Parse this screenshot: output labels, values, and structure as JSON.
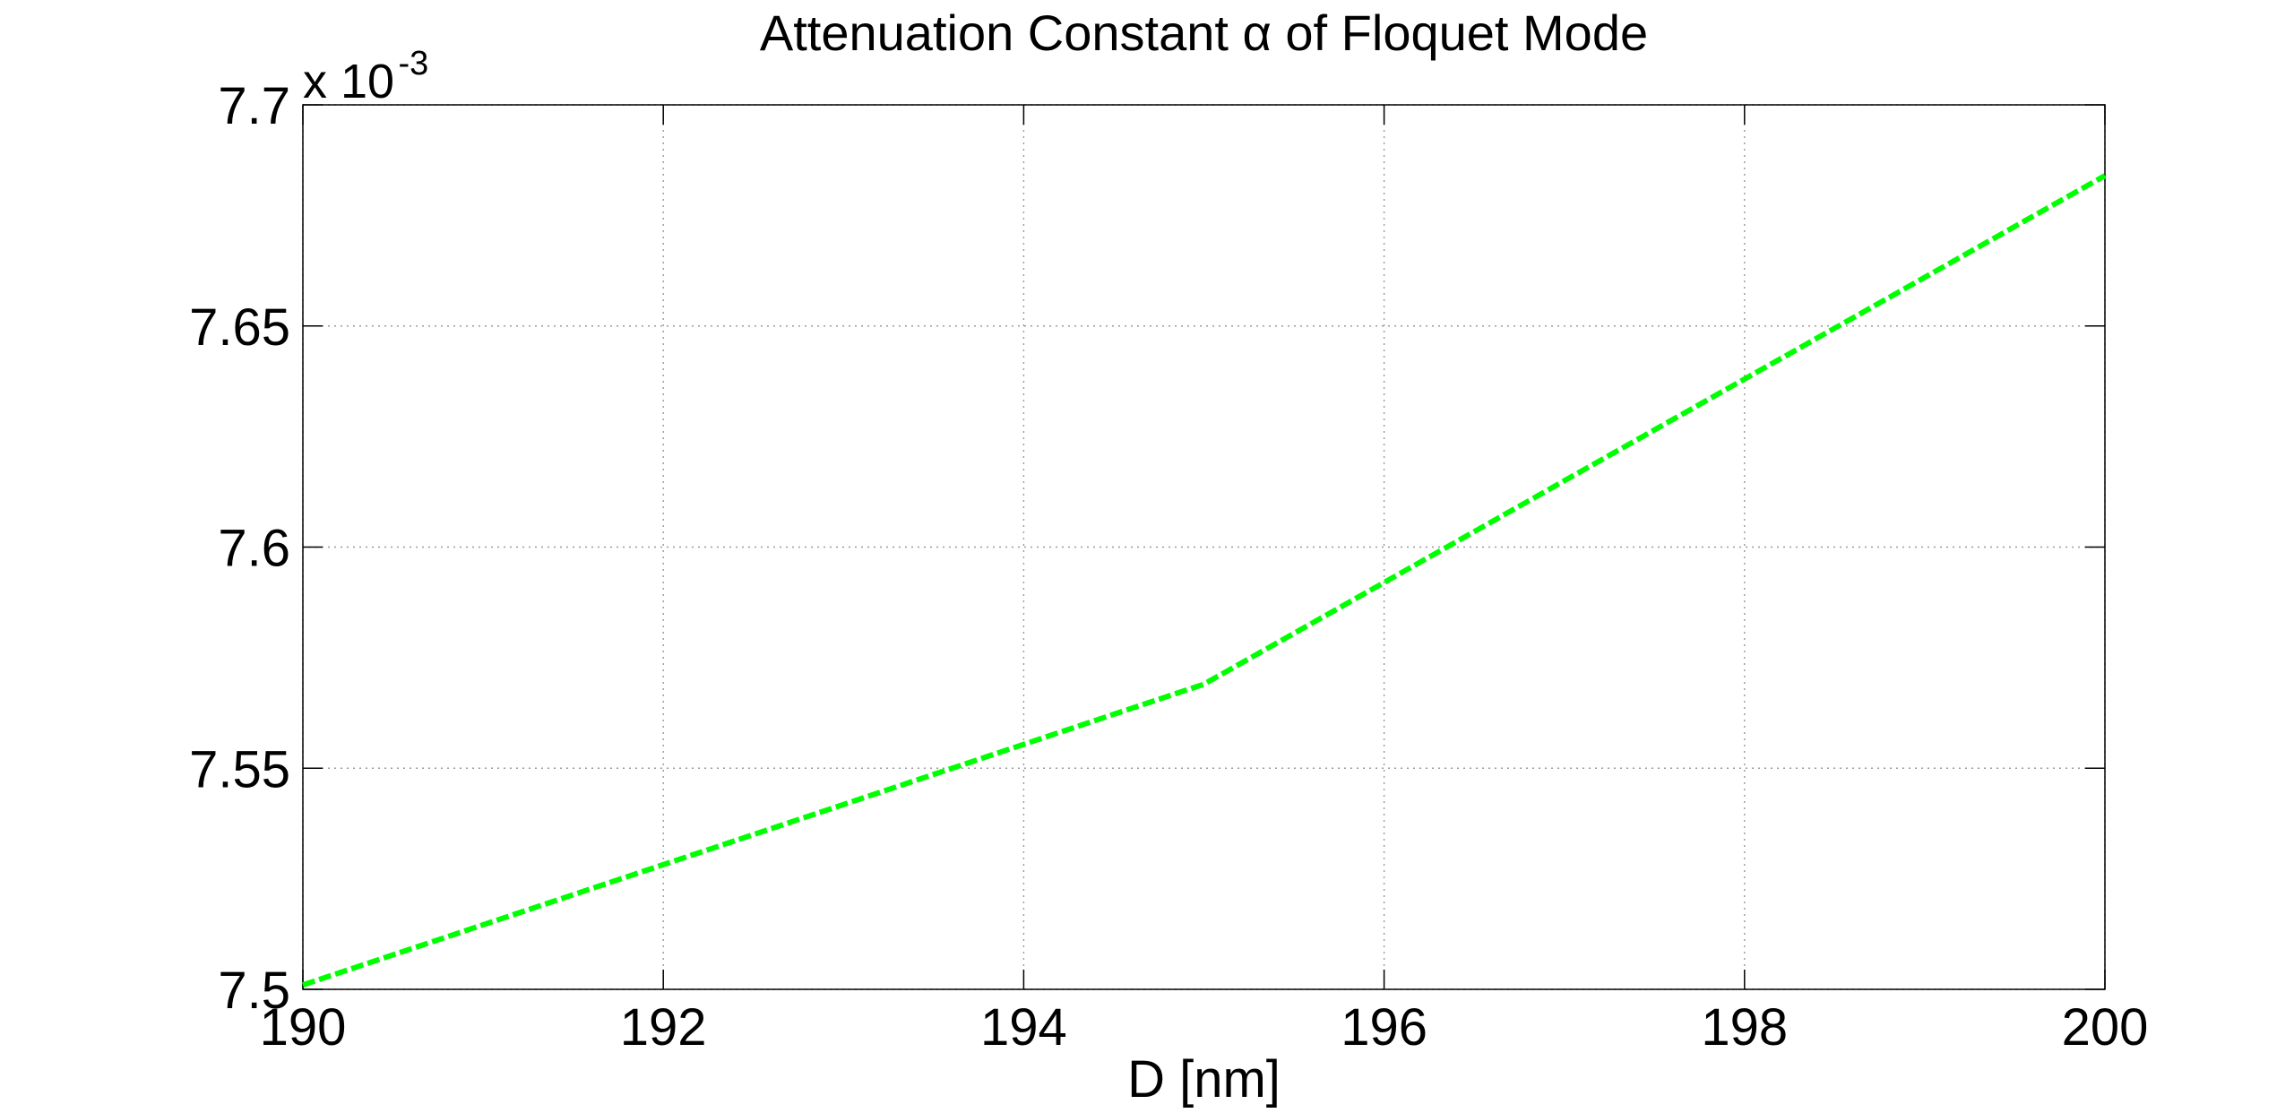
{
  "chart_data": {
    "type": "line",
    "title": "Attenuation Constant α of Floquet Mode",
    "xlabel": "D [nm]",
    "ylabel": "",
    "xlim": [
      190,
      200
    ],
    "ylim": [
      0.0075,
      0.0077
    ],
    "x_ticks": [
      190,
      192,
      194,
      196,
      198,
      200
    ],
    "x_tick_labels": [
      "190",
      "192",
      "194",
      "196",
      "198",
      "200"
    ],
    "y_ticks": [
      0.0075,
      0.00755,
      0.0076,
      0.00765,
      0.0077
    ],
    "y_tick_labels": [
      "7.5",
      "7.55",
      "7.6",
      "7.65",
      "7.7"
    ],
    "y_exponent": {
      "base": "x 10",
      "power": "-3"
    },
    "grid": true,
    "series": [
      {
        "color": "#00ff00",
        "line_style": "dashed",
        "x": [
          190,
          195,
          200
        ],
        "y": [
          0.007501,
          0.007569,
          0.007684
        ]
      }
    ]
  }
}
